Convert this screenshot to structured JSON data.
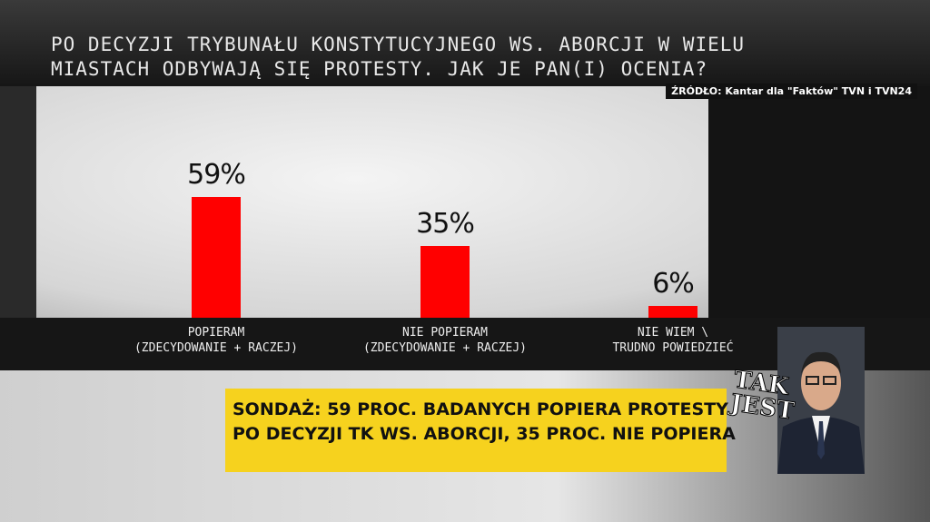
{
  "chart_data": {
    "type": "bar",
    "title": "PO DECYZJI TRYBUNAŁU KONSTYTUCYJNEGO WS. ABORCJI W WIELU\nMIASTACH ODBYWAJĄ SIĘ PROTESTY. JAK JE PAN(I) OCENIA?",
    "source": "ŹRÓDŁO: Kantar dla \"Faktów\" TVN i TVN24",
    "categories": [
      "POPIERAM\n(ZDECYDOWANIE + RACZEJ)",
      "NIE POPIERAM\n(ZDECYDOWANIE + RACZEJ)",
      "NIE WIEM \\\nTRUDNO POWIEDZIEĆ"
    ],
    "values": [
      59,
      35,
      6
    ],
    "value_labels": [
      "59%",
      "35%",
      "6%"
    ],
    "color": "#ff0000"
  },
  "caption": {
    "lines": [
      "SONDAŻ: 59 PROC. BADANYCH POPIERA PROTESTY",
      "PO DECYZJI TK WS. ABORCJI, 35 PROC. NIE POPIERA"
    ]
  },
  "logo": {
    "lines": [
      "TAK",
      "JEST"
    ]
  }
}
